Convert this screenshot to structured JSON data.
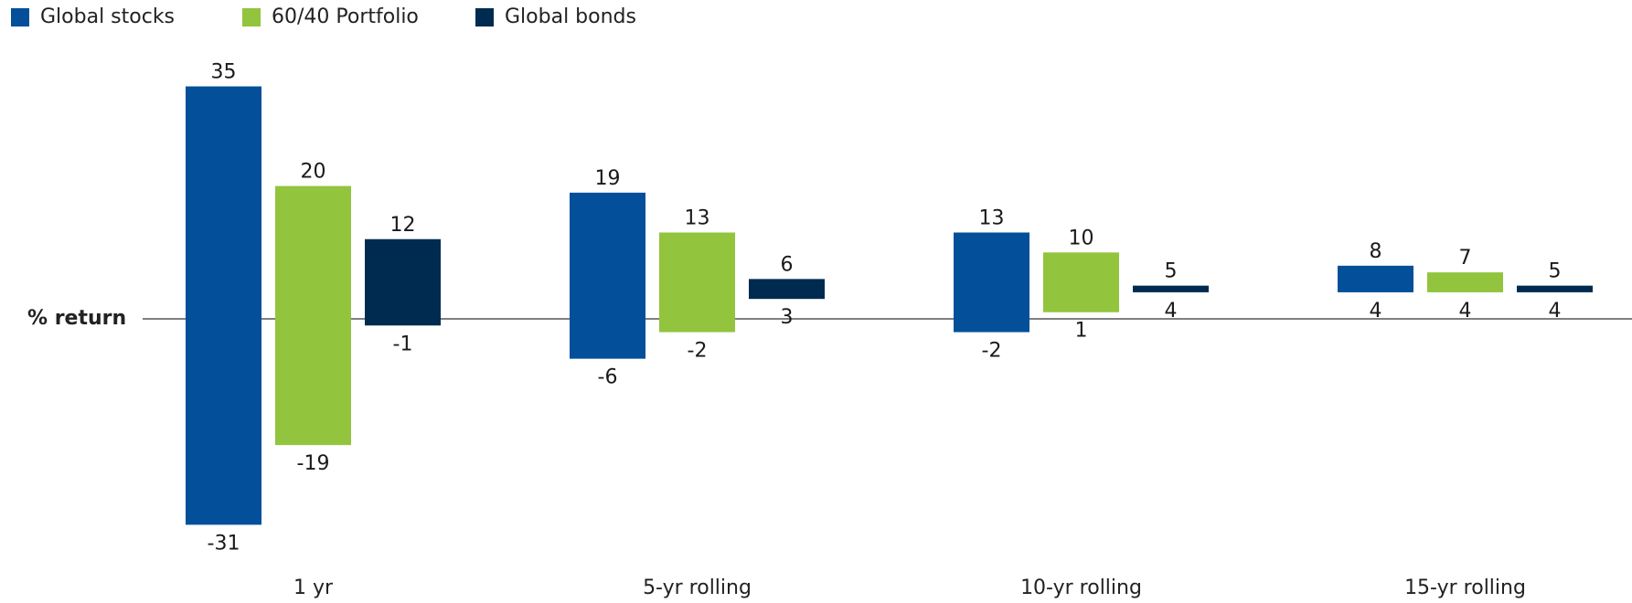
{
  "chart_data": {
    "type": "bar",
    "style": "floating-range",
    "ylabel": "% return",
    "categories": [
      "1 yr",
      "5-yr rolling",
      "10-yr rolling",
      "15-yr rolling"
    ],
    "series": [
      {
        "name": "Global stocks",
        "color": "#034f99",
        "high": [
          35,
          19,
          13,
          8
        ],
        "low": [
          -31,
          -6,
          -2,
          4
        ]
      },
      {
        "name": "60/40 Portfolio",
        "color": "#92c43d",
        "high": [
          20,
          13,
          10,
          7
        ],
        "low": [
          -19,
          -2,
          1,
          4
        ]
      },
      {
        "name": "Global bonds",
        "color": "#002b50",
        "high": [
          12,
          6,
          5,
          5
        ],
        "low": [
          -1,
          3,
          4,
          4
        ]
      }
    ],
    "ylim": [
      -31,
      35
    ],
    "grid": false,
    "zero_line": true,
    "legend_position": "top-left"
  }
}
